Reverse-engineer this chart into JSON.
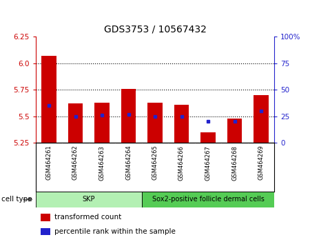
{
  "title": "GDS3753 / 10567432",
  "samples": [
    "GSM464261",
    "GSM464262",
    "GSM464263",
    "GSM464264",
    "GSM464265",
    "GSM464266",
    "GSM464267",
    "GSM464268",
    "GSM464269"
  ],
  "transformed_count": [
    6.07,
    5.62,
    5.63,
    5.76,
    5.63,
    5.61,
    5.35,
    5.48,
    5.7
  ],
  "percentile_rank": [
    35,
    25,
    26,
    27,
    25,
    25,
    20,
    20,
    30
  ],
  "ylim_left": [
    5.25,
    6.25
  ],
  "yticks_left": [
    5.25,
    5.5,
    5.75,
    6.0,
    6.25
  ],
  "ylim_right": [
    0,
    100
  ],
  "yticks_right": [
    0,
    25,
    50,
    75,
    100
  ],
  "ytick_labels_right": [
    "0",
    "25",
    "50",
    "75",
    "100%"
  ],
  "hlines": [
    6.0,
    5.75,
    5.5
  ],
  "bar_color": "#cc0000",
  "dot_color": "#2222cc",
  "bar_width": 0.55,
  "baseline": 5.25,
  "cell_type_groups": [
    {
      "label": "SKP",
      "start": 0,
      "end": 3,
      "color": "#b3f0b3"
    },
    {
      "label": "Sox2-positive follicle dermal cells",
      "start": 4,
      "end": 8,
      "color": "#55cc55"
    }
  ],
  "cell_type_label": "cell type",
  "legend_items": [
    {
      "color": "#cc0000",
      "label": "transformed count"
    },
    {
      "color": "#2222cc",
      "label": "percentile rank within the sample"
    }
  ],
  "left_color": "#cc0000",
  "right_color": "#2222cc",
  "title_fontsize": 10,
  "tick_fontsize": 7.5,
  "sample_fontsize": 6,
  "legend_fontsize": 7.5,
  "celltype_fontsize": 7
}
